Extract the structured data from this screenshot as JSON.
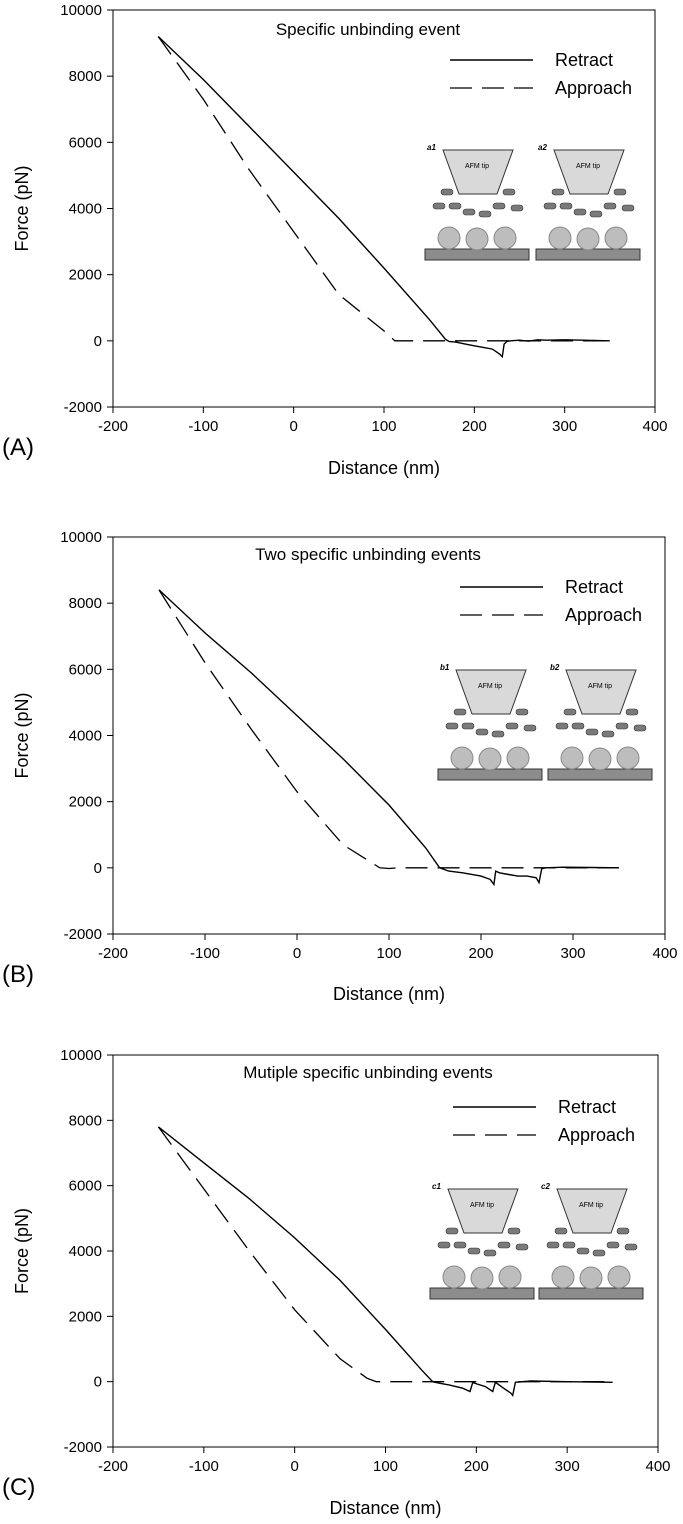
{
  "chart_data": [
    {
      "type": "line",
      "panel_label": "(A)",
      "title": "Specific unbinding event",
      "xlabel": "Distance (nm)",
      "ylabel": "Force (pN)",
      "xlim": [
        -200,
        400
      ],
      "ylim": [
        -2000,
        10000
      ],
      "xticks": [
        "-200",
        "-100",
        "0",
        "100",
        "200",
        "300",
        "400"
      ],
      "yticks": [
        "-2000",
        "0",
        "2000",
        "4000",
        "6000",
        "8000",
        "10000"
      ],
      "legend": [
        "Retract",
        "Approach"
      ],
      "inset_labels": [
        "a1",
        "a2"
      ],
      "inset_tip_label": "AFM tip",
      "series": [
        {
          "name": "Retract",
          "style": "solid",
          "x": [
            -150,
            -100,
            -50,
            0,
            50,
            100,
            150,
            168,
            172,
            180,
            190,
            200,
            210,
            220,
            228,
            231,
            233,
            236,
            240,
            250,
            260,
            270,
            280,
            300,
            320,
            350
          ],
          "y": [
            9200,
            7900,
            6500,
            5100,
            3700,
            2200,
            650,
            50,
            -20,
            -40,
            -100,
            -150,
            -200,
            -250,
            -400,
            -480,
            -100,
            -20,
            0,
            20,
            -10,
            30,
            20,
            30,
            20,
            0
          ]
        },
        {
          "name": "Approach",
          "style": "dashed",
          "x": [
            -150,
            -100,
            -50,
            0,
            50,
            100,
            112,
            120,
            150,
            200,
            250,
            300,
            350
          ],
          "y": [
            9200,
            7300,
            5200,
            3300,
            1400,
            300,
            0,
            0,
            0,
            0,
            0,
            0,
            0
          ]
        }
      ]
    },
    {
      "type": "line",
      "panel_label": "(B)",
      "title": "Two specific unbinding events",
      "xlabel": "Distance (nm)",
      "ylabel": "Force (pN)",
      "xlim": [
        -200,
        400
      ],
      "ylim": [
        -2000,
        10000
      ],
      "xticks": [
        "-200",
        "-100",
        "0",
        "100",
        "200",
        "300",
        "400"
      ],
      "yticks": [
        "-2000",
        "0",
        "2000",
        "4000",
        "6000",
        "8000",
        "10000"
      ],
      "legend": [
        "Retract",
        "Approach"
      ],
      "inset_labels": [
        "b1",
        "b2"
      ],
      "inset_tip_label": "AFM tip",
      "series": [
        {
          "name": "Retract",
          "style": "solid",
          "x": [
            -150,
            -100,
            -50,
            0,
            50,
            100,
            140,
            155,
            165,
            180,
            200,
            210,
            214,
            216,
            220,
            230,
            240,
            250,
            260,
            263,
            266,
            270,
            290,
            320,
            350
          ],
          "y": [
            8400,
            7100,
            5900,
            4600,
            3300,
            1900,
            600,
            0,
            -100,
            -150,
            -250,
            -350,
            -500,
            -100,
            -150,
            -200,
            -250,
            -250,
            -300,
            -450,
            -30,
            0,
            20,
            10,
            0
          ]
        },
        {
          "name": "Approach",
          "style": "dashed",
          "x": [
            -150,
            -100,
            -50,
            0,
            50,
            90,
            100,
            110,
            150,
            200,
            250,
            300,
            350
          ],
          "y": [
            8400,
            6200,
            4200,
            2300,
            700,
            0,
            -20,
            0,
            0,
            0,
            0,
            0,
            0
          ]
        }
      ]
    },
    {
      "type": "line",
      "panel_label": "(C)",
      "title": "Mutiple specific unbinding events",
      "xlabel": "Distance (nm)",
      "ylabel": "Force (pN)",
      "xlim": [
        -200,
        400
      ],
      "ylim": [
        -2000,
        10000
      ],
      "xticks": [
        "-200",
        "-100",
        "0",
        "100",
        "200",
        "300",
        "400"
      ],
      "yticks": [
        "-2000",
        "0",
        "2000",
        "4000",
        "6000",
        "8000",
        "10000"
      ],
      "legend": [
        "Retract",
        "Approach"
      ],
      "inset_labels": [
        "c1",
        "c2"
      ],
      "inset_tip_label": "AFM tip",
      "series": [
        {
          "name": "Retract",
          "style": "solid",
          "x": [
            -150,
            -100,
            -50,
            0,
            50,
            100,
            140,
            152,
            160,
            170,
            185,
            193,
            196,
            210,
            218,
            221,
            230,
            238,
            240,
            243,
            260,
            300,
            350
          ],
          "y": [
            7800,
            6700,
            5600,
            4400,
            3100,
            1600,
            350,
            0,
            -50,
            -100,
            -200,
            -300,
            -30,
            -150,
            -300,
            -20,
            -200,
            -350,
            -420,
            -20,
            20,
            0,
            -20
          ]
        },
        {
          "name": "Approach",
          "style": "dashed",
          "x": [
            -150,
            -100,
            -50,
            0,
            50,
            80,
            90,
            100,
            150,
            200,
            250,
            300,
            350
          ],
          "y": [
            7800,
            5900,
            4000,
            2200,
            700,
            100,
            0,
            0,
            0,
            0,
            0,
            0,
            0
          ]
        }
      ]
    }
  ]
}
